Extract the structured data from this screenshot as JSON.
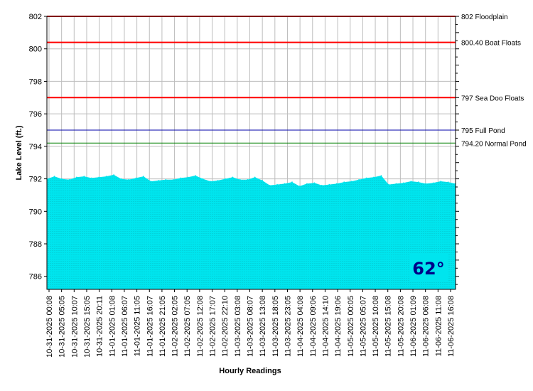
{
  "chart_data": {
    "type": "area",
    "title": "",
    "xlabel": "Hourly Readings",
    "ylabel": "Lake Level (ft.)",
    "ylim": [
      785.2,
      802
    ],
    "yticks": [
      786,
      788,
      790,
      792,
      794,
      796,
      798,
      800,
      802
    ],
    "grid": true,
    "x_tick_labels": [
      "10-31-2025 00:08",
      "10-31-2025 05:05",
      "10-31-2025 10:07",
      "10-31-2025 15:05",
      "10-31-2025 20:11",
      "11-01-2025 01:08",
      "11-01-2025 06:07",
      "11-01-2025 11:05",
      "11-01-2025 16:07",
      "11-01-2025 21:05",
      "11-02-2025 02:05",
      "11-02-2025 07:05",
      "11-02-2025 12:08",
      "11-02-2025 17:07",
      "11-02-2025 22:10",
      "11-03-2025 03:08",
      "11-03-2025 08:07",
      "11-03-2025 13:08",
      "11-03-2025 18:05",
      "11-03-2025 23:05",
      "11-04-2025 04:08",
      "11-04-2025 09:06",
      "11-04-2025 14:10",
      "11-04-2025 19:06",
      "11-05-2025 00:05",
      "11-05-2025 05:07",
      "11-05-2025 10:08",
      "11-05-2025 15:08",
      "11-05-2025 20:08",
      "11-06-2025 01:09",
      "11-06-2025 06:08",
      "11-06-2025 11:08",
      "11-06-2025 16:08"
    ],
    "series": [
      {
        "values": [
          792.0,
          792.15,
          792.0,
          791.95,
          792.1,
          792.15,
          792.05,
          792.1,
          792.15,
          792.25,
          792.0,
          791.95,
          792.05,
          792.15,
          791.85,
          791.9,
          791.95,
          791.95,
          792.05,
          792.1,
          792.2,
          792.0,
          791.85,
          791.9,
          792.0,
          792.1,
          791.95,
          791.95,
          792.1,
          791.9,
          791.6,
          791.65,
          791.7,
          791.8,
          791.55,
          791.7,
          791.75,
          791.6,
          791.65,
          791.7,
          791.8,
          791.85,
          791.95,
          792.05,
          792.1,
          792.2,
          791.65,
          791.7,
          791.75,
          791.85,
          791.8,
          791.7,
          791.75,
          791.85,
          791.8,
          791.7
        ]
      }
    ],
    "reference_lines": [
      {
        "value": 802,
        "label": "802 Floodplain",
        "color": "#ff0000"
      },
      {
        "value": 800.4,
        "label": "800.40 Boat Floats",
        "color": "#ff0000"
      },
      {
        "value": 797,
        "label": "797 Sea Doo Floats",
        "color": "#ff0000"
      },
      {
        "value": 795,
        "label": "795 Full Pond",
        "color": "#0000aa"
      },
      {
        "value": 794.2,
        "label": "794.20 Normal Pond",
        "color": "#008000"
      }
    ],
    "colors": {
      "fill": "#00e5ee",
      "fill_texture": "#0d7f86",
      "grid": "#bdbdbd",
      "badge_bg": "#00e5ee",
      "badge_text": "#000088"
    }
  },
  "temperature_badge": {
    "text": "62°"
  }
}
